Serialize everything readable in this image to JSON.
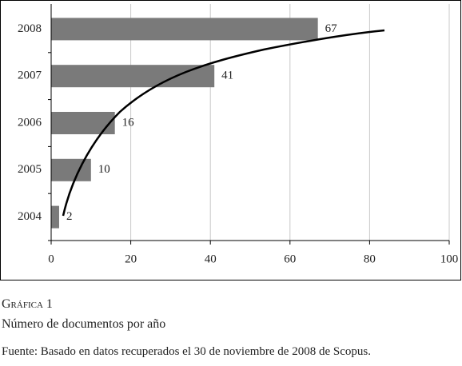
{
  "chart_data": {
    "type": "bar",
    "orientation": "horizontal",
    "categories": [
      "2004",
      "2005",
      "2006",
      "2007",
      "2008"
    ],
    "values": [
      2,
      10,
      16,
      41,
      67
    ],
    "color": "#7a7a7a",
    "xlim": [
      0,
      100
    ],
    "xticks": [
      0,
      20,
      40,
      60,
      80,
      100
    ],
    "grid": true
  },
  "caption": {
    "label": "Gráfica 1",
    "title": "Número de documentos por año",
    "source": "Fuente: Basado en datos recuperados el 30 de noviembre de 2008 de Scopus."
  }
}
